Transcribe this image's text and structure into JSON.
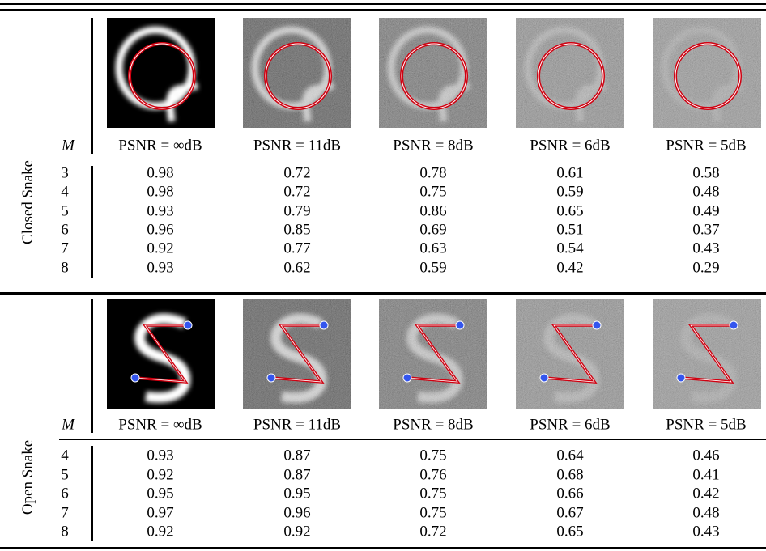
{
  "sections": [
    {
      "label": "Closed Snake",
      "m_header": "M",
      "columns": [
        "PSNR = ∞dB",
        "PSNR = 11dB",
        "PSNR = 8dB",
        "PSNR = 6dB",
        "PSNR = 5dB"
      ],
      "rows": [
        [
          "3",
          "0.98",
          "0.72",
          "0.78",
          "0.61",
          "0.58"
        ],
        [
          "4",
          "0.98",
          "0.72",
          "0.75",
          "0.59",
          "0.48"
        ],
        [
          "5",
          "0.93",
          "0.79",
          "0.86",
          "0.65",
          "0.49"
        ],
        [
          "6",
          "0.96",
          "0.85",
          "0.69",
          "0.51",
          "0.37"
        ],
        [
          "7",
          "0.92",
          "0.77",
          "0.63",
          "0.54",
          "0.43"
        ],
        [
          "8",
          "0.93",
          "0.62",
          "0.59",
          "0.42",
          "0.29"
        ]
      ]
    },
    {
      "label": "Open Snake",
      "m_header": "M",
      "columns": [
        "PSNR = ∞dB",
        "PSNR = 11dB",
        "PSNR = 8dB",
        "PSNR = 6dB",
        "PSNR = 5dB"
      ],
      "rows": [
        [
          "4",
          "0.93",
          "0.87",
          "0.75",
          "0.64",
          "0.46"
        ],
        [
          "5",
          "0.92",
          "0.87",
          "0.76",
          "0.68",
          "0.41"
        ],
        [
          "6",
          "0.95",
          "0.95",
          "0.75",
          "0.66",
          "0.42"
        ],
        [
          "7",
          "0.97",
          "0.96",
          "0.75",
          "0.67",
          "0.48"
        ],
        [
          "8",
          "0.92",
          "0.92",
          "0.72",
          "0.65",
          "0.43"
        ]
      ]
    }
  ]
}
